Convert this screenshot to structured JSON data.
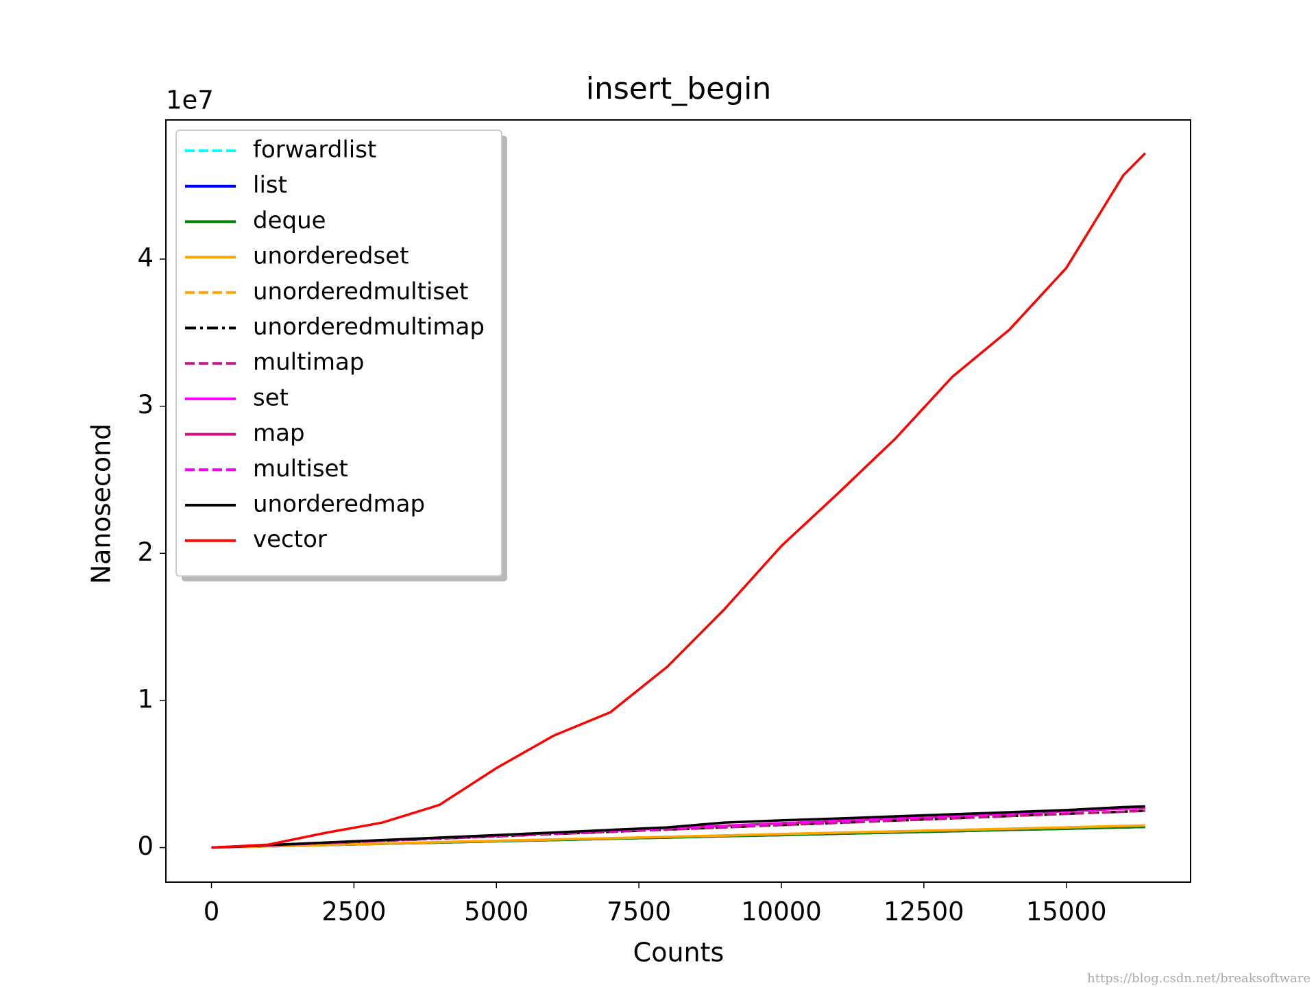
{
  "chart_data": {
    "type": "line",
    "title": "insert_begin",
    "xlabel": "Counts",
    "ylabel": "Nanosecond",
    "y_offset_label": "1e7",
    "watermark": "https://blog.csdn.net/breaksoftware",
    "xlim": [
      -800,
      17180
    ],
    "ylim": [
      -0.235,
      4.946
    ],
    "xticks": [
      0,
      2500,
      5000,
      7500,
      10000,
      12500,
      15000
    ],
    "yticks": [
      0,
      1,
      2,
      3,
      4
    ],
    "legend": "upper left",
    "x": [
      0,
      1000,
      2000,
      3000,
      4000,
      5000,
      6000,
      7000,
      8000,
      9000,
      10000,
      11000,
      12000,
      13000,
      14000,
      15000,
      16000,
      16384
    ],
    "series": [
      {
        "name": "forwardlist",
        "color": "#00ffff",
        "dash": "dashed",
        "values": [
          0,
          0.009,
          0.017,
          0.026,
          0.034,
          0.043,
          0.051,
          0.06,
          0.068,
          0.077,
          0.085,
          0.094,
          0.102,
          0.111,
          0.12,
          0.128,
          0.137,
          0.14
        ]
      },
      {
        "name": "list",
        "color": "#0000ff",
        "dash": "solid",
        "values": [
          0,
          0.009,
          0.017,
          0.026,
          0.034,
          0.043,
          0.051,
          0.06,
          0.068,
          0.077,
          0.085,
          0.094,
          0.102,
          0.111,
          0.12,
          0.128,
          0.137,
          0.14
        ]
      },
      {
        "name": "deque",
        "color": "#008000",
        "dash": "solid",
        "values": [
          0,
          0.009,
          0.017,
          0.026,
          0.034,
          0.043,
          0.051,
          0.06,
          0.068,
          0.077,
          0.085,
          0.094,
          0.102,
          0.111,
          0.12,
          0.128,
          0.137,
          0.14
        ]
      },
      {
        "name": "unorderedset",
        "color": "#ffa500",
        "dash": "solid",
        "values": [
          0,
          0.009,
          0.018,
          0.027,
          0.037,
          0.046,
          0.055,
          0.064,
          0.073,
          0.082,
          0.092,
          0.101,
          0.11,
          0.119,
          0.128,
          0.137,
          0.147,
          0.15
        ]
      },
      {
        "name": "unorderedmultiset",
        "color": "#ffa500",
        "dash": "dashed",
        "values": [
          0,
          0.009,
          0.018,
          0.027,
          0.037,
          0.046,
          0.055,
          0.064,
          0.073,
          0.082,
          0.092,
          0.101,
          0.11,
          0.119,
          0.128,
          0.137,
          0.147,
          0.15
        ]
      },
      {
        "name": "unorderedmultimap",
        "color": "#000000",
        "dash": "dashdot",
        "values": [
          0,
          0.015,
          0.031,
          0.046,
          0.061,
          0.076,
          0.092,
          0.107,
          0.122,
          0.137,
          0.153,
          0.168,
          0.183,
          0.198,
          0.214,
          0.229,
          0.244,
          0.25
        ]
      },
      {
        "name": "multimap",
        "color": "#c71585",
        "dash": "dashed",
        "values": [
          0,
          0.015,
          0.031,
          0.046,
          0.061,
          0.076,
          0.092,
          0.107,
          0.122,
          0.137,
          0.153,
          0.168,
          0.183,
          0.198,
          0.214,
          0.229,
          0.244,
          0.25
        ]
      },
      {
        "name": "set",
        "color": "#ff00ff",
        "dash": "solid",
        "values": [
          0,
          0.016,
          0.033,
          0.049,
          0.066,
          0.082,
          0.099,
          0.115,
          0.132,
          0.148,
          0.165,
          0.181,
          0.198,
          0.214,
          0.231,
          0.247,
          0.264,
          0.27
        ]
      },
      {
        "name": "map",
        "color": "#c71585",
        "dash": "solid",
        "values": [
          0,
          0.016,
          0.033,
          0.049,
          0.066,
          0.082,
          0.099,
          0.115,
          0.132,
          0.148,
          0.165,
          0.181,
          0.198,
          0.214,
          0.231,
          0.247,
          0.264,
          0.27
        ]
      },
      {
        "name": "multiset",
        "color": "#ff00ff",
        "dash": "dashed",
        "values": [
          0,
          0.016,
          0.033,
          0.049,
          0.066,
          0.082,
          0.099,
          0.115,
          0.132,
          0.148,
          0.165,
          0.181,
          0.198,
          0.214,
          0.231,
          0.247,
          0.264,
          0.27
        ]
      },
      {
        "name": "unorderedmap",
        "color": "#000000",
        "dash": "solid",
        "values": [
          0,
          0.017,
          0.034,
          0.051,
          0.068,
          0.085,
          0.102,
          0.12,
          0.137,
          0.17,
          0.185,
          0.198,
          0.212,
          0.226,
          0.24,
          0.255,
          0.275,
          0.28
        ]
      },
      {
        "name": "vector",
        "color": "#ff0000",
        "dash": "solid",
        "values": [
          0,
          0.02,
          0.1,
          0.17,
          0.29,
          0.54,
          0.76,
          0.92,
          1.23,
          1.62,
          2.05,
          2.41,
          2.78,
          3.2,
          3.52,
          3.94,
          4.57,
          4.72
        ]
      }
    ]
  }
}
